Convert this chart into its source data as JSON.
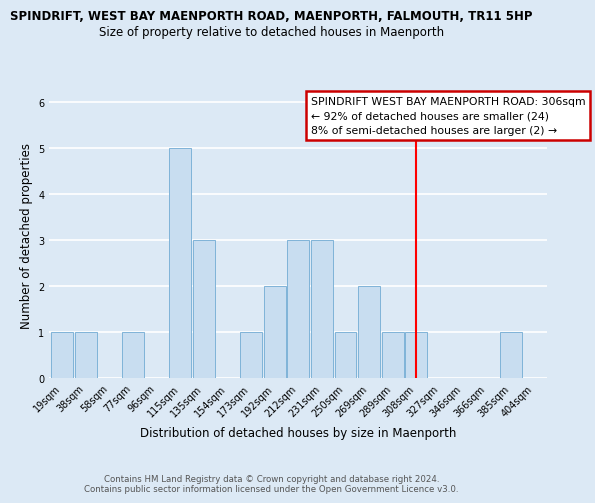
{
  "title": "SPINDRIFT, WEST BAY MAENPORTH ROAD, MAENPORTH, FALMOUTH, TR11 5HP",
  "subtitle": "Size of property relative to detached houses in Maenporth",
  "xlabel": "Distribution of detached houses by size in Maenporth",
  "ylabel": "Number of detached properties",
  "bin_labels": [
    "19sqm",
    "38sqm",
    "58sqm",
    "77sqm",
    "96sqm",
    "115sqm",
    "135sqm",
    "154sqm",
    "173sqm",
    "192sqm",
    "212sqm",
    "231sqm",
    "250sqm",
    "269sqm",
    "289sqm",
    "308sqm",
    "327sqm",
    "346sqm",
    "366sqm",
    "385sqm",
    "404sqm"
  ],
  "bar_heights": [
    1,
    1,
    0,
    1,
    0,
    5,
    3,
    0,
    1,
    2,
    3,
    3,
    1,
    2,
    1,
    1,
    0,
    0,
    0,
    1,
    0
  ],
  "bar_color": "#c8ddf0",
  "bar_edgecolor": "#7fb3d8",
  "red_line_index": 15,
  "annotation_line0": "SPINDRIFT WEST BAY MAENPORTH ROAD: 306sqm",
  "annotation_line1": "← 92% of detached houses are smaller (24)",
  "annotation_line2": "8% of semi-detached houses are larger (2) →",
  "ylim": [
    0,
    6.2
  ],
  "yticks": [
    0,
    1,
    2,
    3,
    4,
    5,
    6
  ],
  "footer1": "Contains HM Land Registry data © Crown copyright and database right 2024.",
  "footer2": "Contains public sector information licensed under the Open Government Licence v3.0.",
  "background_color": "#dce9f5",
  "plot_background_color": "#dce9f5",
  "title_fontsize": 8.5,
  "subtitle_fontsize": 8.5,
  "xlabel_fontsize": 8.5,
  "ylabel_fontsize": 8.5,
  "tick_fontsize": 7.0,
  "annotation_fontsize": 7.8,
  "footer_fontsize": 6.2
}
